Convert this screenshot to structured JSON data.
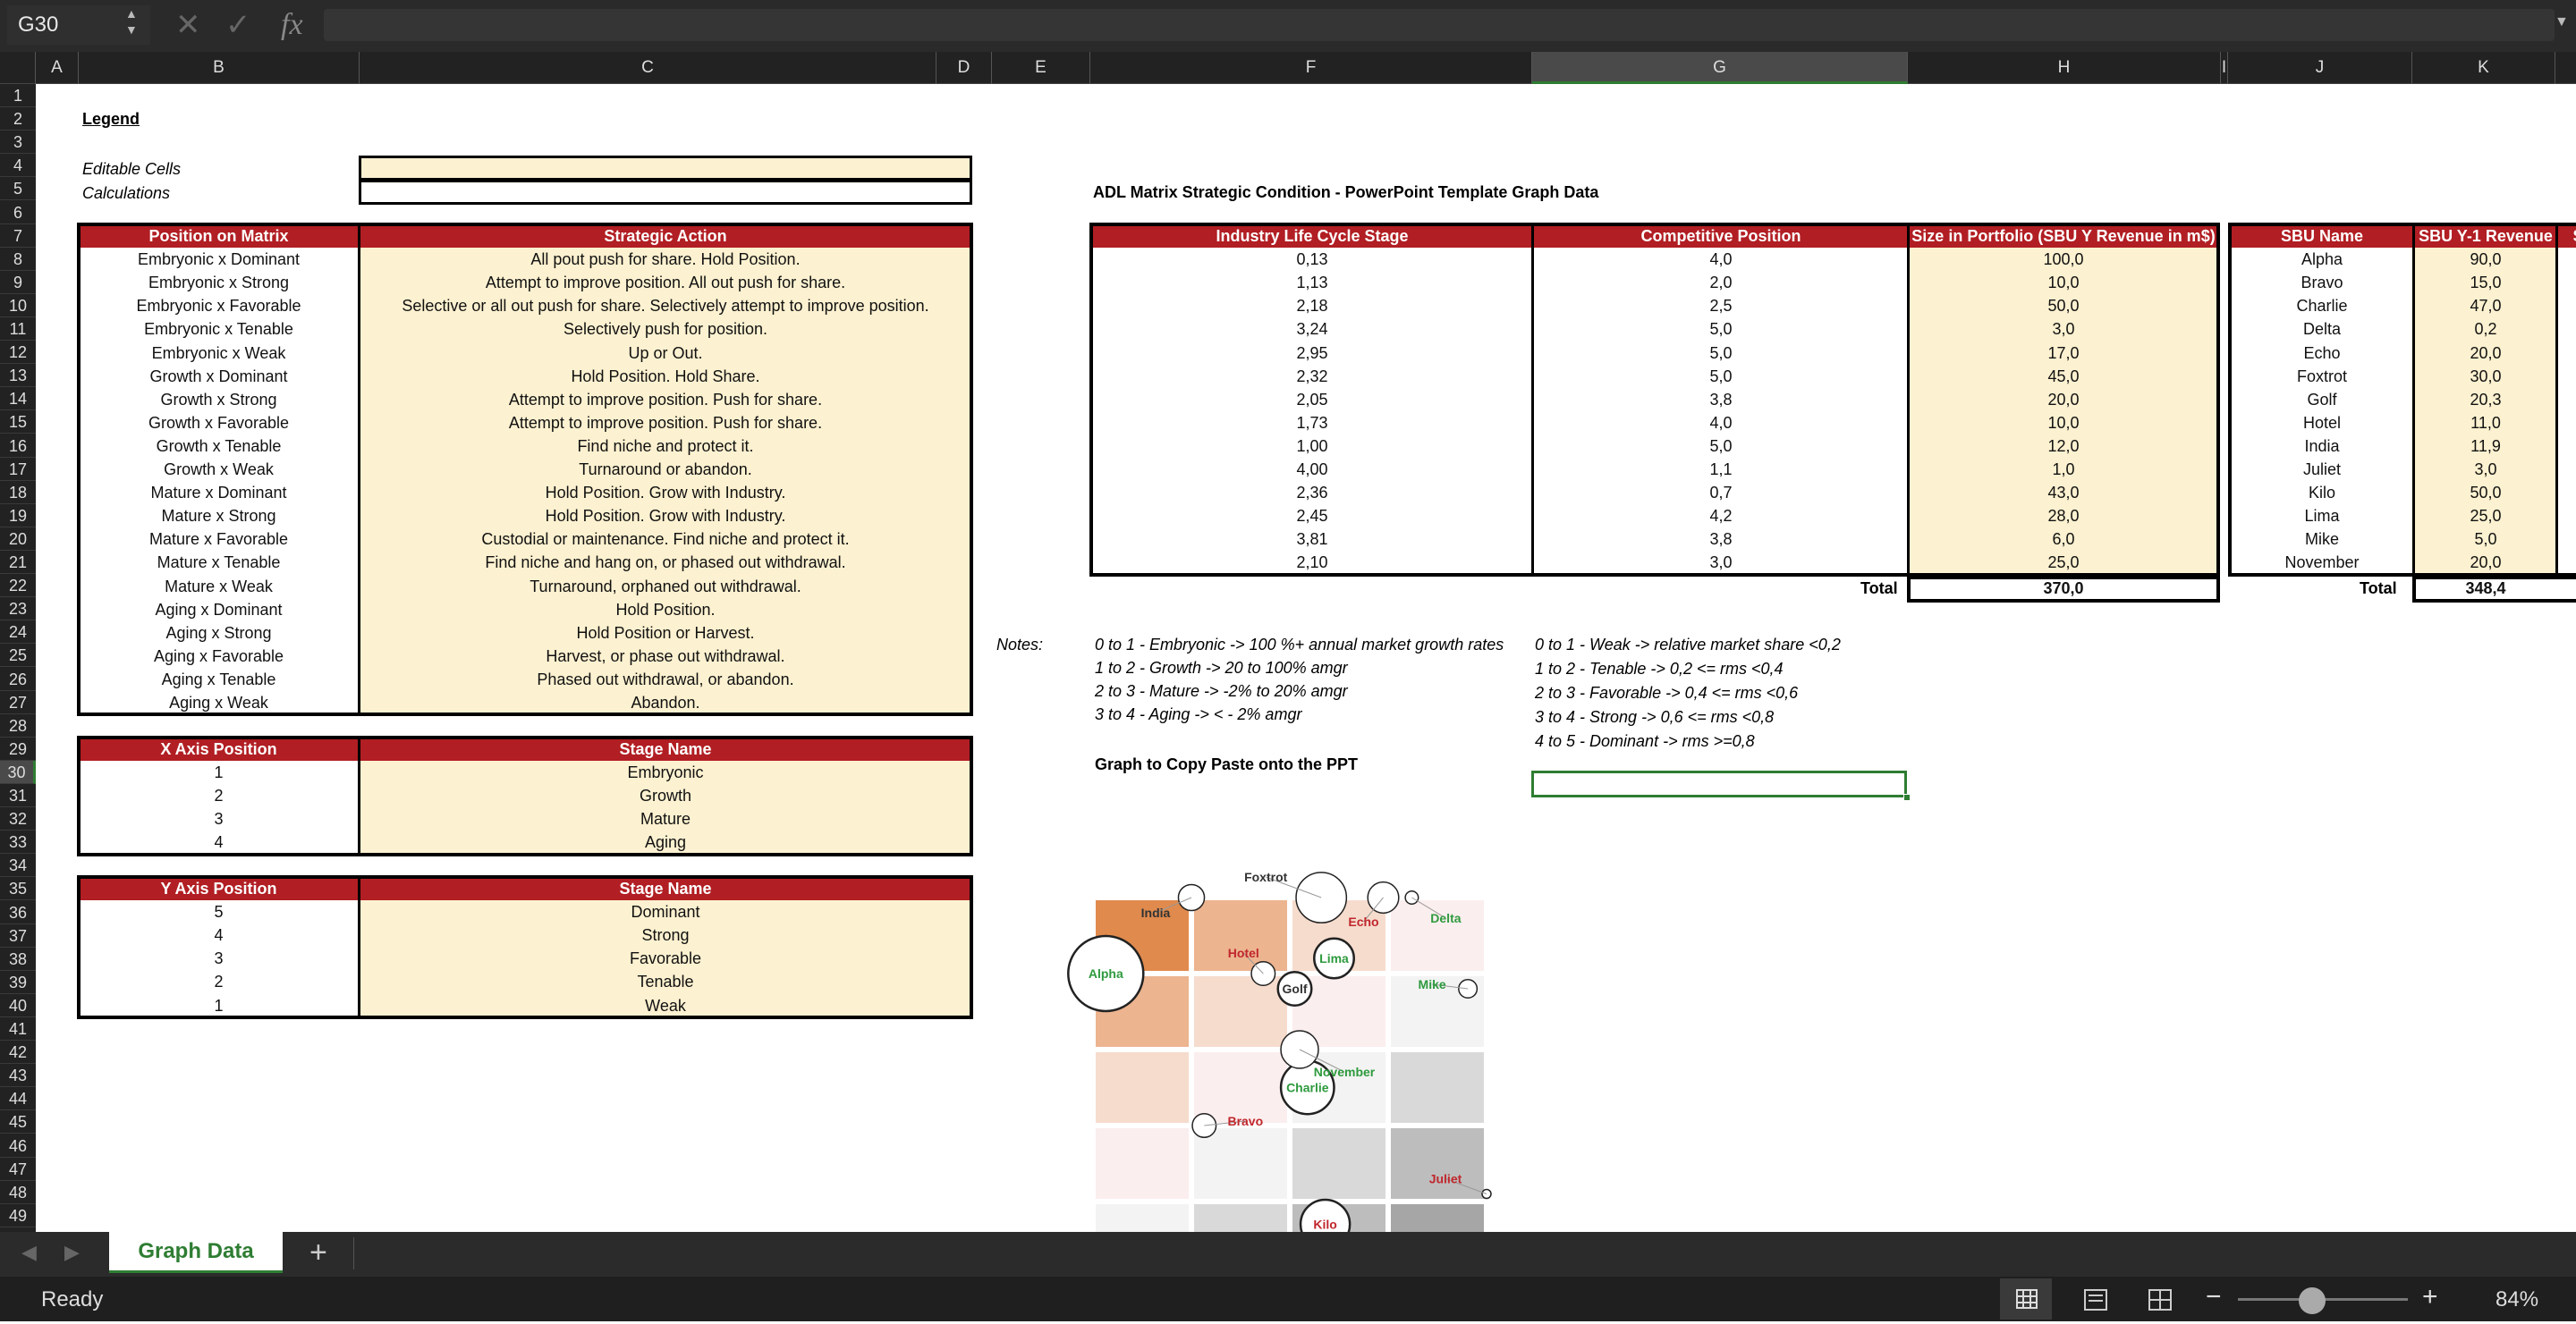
{
  "formula_bar": {
    "name_box": "G30",
    "fx": "fx",
    "formula": ""
  },
  "columns": [
    "A",
    "B",
    "C",
    "D",
    "E",
    "F",
    "G",
    "H",
    "I",
    "J",
    "K"
  ],
  "row_numbers": [
    "1",
    "2",
    "3",
    "4",
    "5",
    "6",
    "7",
    "8",
    "9",
    "10",
    "11",
    "12",
    "13",
    "14",
    "15",
    "16",
    "17",
    "18",
    "19",
    "20",
    "21",
    "22",
    "23",
    "24",
    "25",
    "26",
    "27",
    "28",
    "29",
    "30",
    "31",
    "32",
    "33",
    "34",
    "35",
    "36",
    "37",
    "38",
    "39",
    "40",
    "41",
    "42",
    "43",
    "44",
    "45",
    "46",
    "47",
    "48",
    "49"
  ],
  "legend": {
    "title": "Legend",
    "editable": "Editable Cells",
    "calculations": "Calculations"
  },
  "position_table": {
    "headers": [
      "Position on Matrix",
      "Strategic Action"
    ],
    "rows": [
      [
        "Embryonic x Dominant",
        "All pout push for share. Hold Position."
      ],
      [
        "Embryonic x Strong",
        "Attempt to improve position. All out push for share."
      ],
      [
        "Embryonic x Favorable",
        "Selective or all out push for share. Selectively attempt to improve position."
      ],
      [
        "Embryonic x Tenable",
        "Selectively push for position."
      ],
      [
        "Embryonic x Weak",
        "Up or Out."
      ],
      [
        "Growth x Dominant",
        "Hold Position. Hold Share."
      ],
      [
        "Growth x Strong",
        "Attempt to improve position. Push for share."
      ],
      [
        "Growth x Favorable",
        "Attempt to improve position. Push for share."
      ],
      [
        "Growth x Tenable",
        "Find niche and protect it."
      ],
      [
        "Growth x Weak",
        "Turnaround or abandon."
      ],
      [
        "Mature x Dominant",
        "Hold Position. Grow with Industry."
      ],
      [
        "Mature x Strong",
        "Hold Position. Grow with Industry."
      ],
      [
        "Mature x Favorable",
        "Custodial or maintenance. Find niche and protect it."
      ],
      [
        "Mature x Tenable",
        "Find niche and hang on, or phased out withdrawal."
      ],
      [
        "Mature x Weak",
        "Turnaround, orphaned out withdrawal."
      ],
      [
        "Aging x Dominant",
        "Hold Position."
      ],
      [
        "Aging x Strong",
        "Hold Position or Harvest."
      ],
      [
        "Aging x Favorable",
        "Harvest, or phase out withdrawal."
      ],
      [
        "Aging x Tenable",
        "Phased out withdrawal, or abandon."
      ],
      [
        "Aging x Weak",
        "Abandon."
      ]
    ]
  },
  "x_axis_table": {
    "headers": [
      "X Axis Position",
      "Stage Name"
    ],
    "rows": [
      [
        "1",
        "Embryonic"
      ],
      [
        "2",
        "Growth"
      ],
      [
        "3",
        "Mature"
      ],
      [
        "4",
        "Aging"
      ]
    ]
  },
  "y_axis_table": {
    "headers": [
      "Y Axis Position",
      "Stage Name"
    ],
    "rows": [
      [
        "5",
        "Dominant"
      ],
      [
        "4",
        "Strong"
      ],
      [
        "3",
        "Favorable"
      ],
      [
        "2",
        "Tenable"
      ],
      [
        "1",
        "Weak"
      ]
    ]
  },
  "graph_data": {
    "title": "ADL Matrix Strategic Condition - PowerPoint Template Graph Data",
    "headers": [
      "Industry Life Cycle Stage",
      "Competitive Position",
      "Size in Portfolio (SBU Y Revenue in m$)"
    ],
    "rows": [
      [
        "0,13",
        "4,0",
        "100,0"
      ],
      [
        "1,13",
        "2,0",
        "10,0"
      ],
      [
        "2,18",
        "2,5",
        "50,0"
      ],
      [
        "3,24",
        "5,0",
        "3,0"
      ],
      [
        "2,95",
        "5,0",
        "17,0"
      ],
      [
        "2,32",
        "5,0",
        "45,0"
      ],
      [
        "2,05",
        "3,8",
        "20,0"
      ],
      [
        "1,73",
        "4,0",
        "10,0"
      ],
      [
        "1,00",
        "5,0",
        "12,0"
      ],
      [
        "4,00",
        "1,1",
        "1,0"
      ],
      [
        "2,36",
        "0,7",
        "43,0"
      ],
      [
        "2,45",
        "4,2",
        "28,0"
      ],
      [
        "3,81",
        "3,8",
        "6,0"
      ],
      [
        "2,10",
        "3,0",
        "25,0"
      ]
    ],
    "total_label": "Total",
    "total_value": "370,0"
  },
  "sbu_table": {
    "headers": [
      "SBU Name",
      "SBU Y-1 Revenue",
      "SB"
    ],
    "rows": [
      [
        "Alpha",
        "90,0"
      ],
      [
        "Bravo",
        "15,0"
      ],
      [
        "Charlie",
        "47,0"
      ],
      [
        "Delta",
        "0,2"
      ],
      [
        "Echo",
        "20,0"
      ],
      [
        "Foxtrot",
        "30,0"
      ],
      [
        "Golf",
        "20,3"
      ],
      [
        "Hotel",
        "11,0"
      ],
      [
        "India",
        "11,9"
      ],
      [
        "Juliet",
        "3,0"
      ],
      [
        "Kilo",
        "50,0"
      ],
      [
        "Lima",
        "25,0"
      ],
      [
        "Mike",
        "5,0"
      ],
      [
        "November",
        "20,0"
      ]
    ],
    "total_label": "Total",
    "total_value": "348,4"
  },
  "notes": {
    "label": "Notes:",
    "x_notes": [
      "0 to 1 - Embryonic  ->  100 %+ annual market growth rates",
      "1 to 2 - Growth  ->  20 to 100% amgr",
      "2 to 3 - Mature  ->  -2% to 20% amgr",
      "3 to 4 - Aging  ->  < - 2% amgr"
    ],
    "y_notes": [
      "0 to 1 - Weak  ->  relative market share <0,2",
      "1 to 2 - Tenable  ->  0,2 <= rms <0,4",
      "2 to 3 - Favorable  ->   0,4 <= rms <0,6",
      "3 to 4 - Strong  ->  0,6 <= rms <0,8",
      "4 to 5 - Dominant  ->  rms >=0,8"
    ]
  },
  "graph_title": "Graph to Copy Paste onto the PPT",
  "chart_data": {
    "type": "scatter",
    "title": "",
    "xlabel": "",
    "ylabel": "",
    "xlim": [
      0,
      4
    ],
    "ylim": [
      0,
      5
    ],
    "grid": true,
    "bubbles": [
      {
        "name": "Alpha",
        "x": 0.13,
        "y": 4.0,
        "size": 100,
        "label_color": "#2e9a3e"
      },
      {
        "name": "Bravo",
        "x": 1.13,
        "y": 2.0,
        "size": 10,
        "label_color": "#c0272d"
      },
      {
        "name": "Charlie",
        "x": 2.18,
        "y": 2.5,
        "size": 50,
        "label_color": "#2e9a3e"
      },
      {
        "name": "Delta",
        "x": 3.24,
        "y": 5.0,
        "size": 3,
        "label_color": "#2e9a3e"
      },
      {
        "name": "Echo",
        "x": 2.95,
        "y": 5.0,
        "size": 17,
        "label_color": "#c0272d"
      },
      {
        "name": "Foxtrot",
        "x": 2.32,
        "y": 5.0,
        "size": 45,
        "label_color": "#333333"
      },
      {
        "name": "Golf",
        "x": 2.05,
        "y": 3.8,
        "size": 20,
        "label_color": "#333333"
      },
      {
        "name": "Hotel",
        "x": 1.73,
        "y": 4.0,
        "size": 10,
        "label_color": "#c0272d"
      },
      {
        "name": "India",
        "x": 1.0,
        "y": 5.0,
        "size": 12,
        "label_color": "#333333"
      },
      {
        "name": "Juliet",
        "x": 4.0,
        "y": 1.1,
        "size": 1,
        "label_color": "#c0272d"
      },
      {
        "name": "Kilo",
        "x": 2.36,
        "y": 0.7,
        "size": 43,
        "label_color": "#c0272d"
      },
      {
        "name": "Lima",
        "x": 2.45,
        "y": 4.2,
        "size": 28,
        "label_color": "#2e9a3e"
      },
      {
        "name": "Mike",
        "x": 3.81,
        "y": 3.8,
        "size": 6,
        "label_color": "#2e9a3e"
      },
      {
        "name": "November",
        "x": 2.1,
        "y": 3.0,
        "size": 25,
        "label_color": "#2e9a3e"
      }
    ],
    "cell_colors": [
      [
        "#e08a4d",
        "#ecb48f",
        "#f6dccd",
        "#fbeeee"
      ],
      [
        "#ecb48f",
        "#f6dccd",
        "#fbeeee",
        "#f3f3f3"
      ],
      [
        "#f6dccd",
        "#fbeeee",
        "#f3f3f3",
        "#d9d9d9"
      ],
      [
        "#fbeeee",
        "#f3f3f3",
        "#d9d9d9",
        "#bdbdbd"
      ],
      [
        "#f3f3f3",
        "#d9d9d9",
        "#bdbdbd",
        "#a6a6a6"
      ]
    ]
  },
  "sheet_tabs": {
    "active": "Graph Data",
    "add": "+"
  },
  "status": {
    "ready": "Ready",
    "zoom": "84%",
    "minus": "−",
    "plus": "+"
  },
  "colors": {
    "header_red": "#b11e23",
    "cream": "#fcf1d0",
    "excel_green": "#2e7d32"
  }
}
